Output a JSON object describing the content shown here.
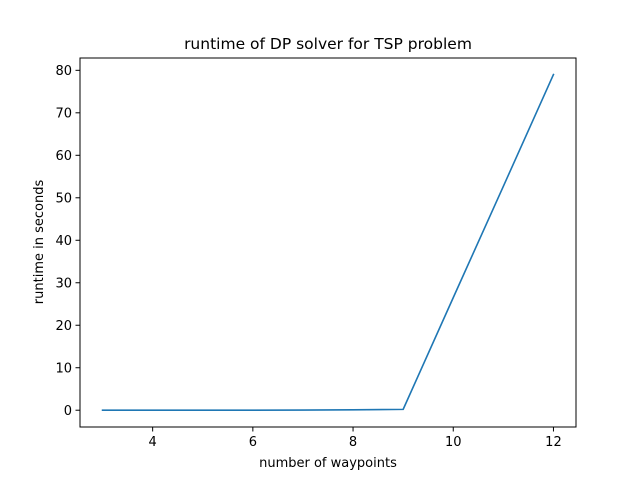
{
  "chart_data": {
    "type": "line",
    "title": "runtime of DP solver for TSP problem",
    "xlabel": "number of waypoints",
    "ylabel": "runtime in seconds",
    "xlim": [
      2.55,
      12.45
    ],
    "ylim": [
      -3.95,
      82.9
    ],
    "xticks": [
      4,
      6,
      8,
      10,
      12
    ],
    "yticks": [
      0,
      10,
      20,
      30,
      40,
      50,
      60,
      70,
      80
    ],
    "grid": false,
    "legend": "none",
    "series": [
      {
        "color": "#1f77b4",
        "x": [
          3,
          4,
          5,
          6,
          7,
          8,
          9,
          10,
          11,
          12
        ],
        "y": [
          0.0,
          0.0,
          0.0,
          0.01,
          0.03,
          0.1,
          0.2,
          26.5,
          52.7,
          79.0
        ]
      }
    ]
  }
}
